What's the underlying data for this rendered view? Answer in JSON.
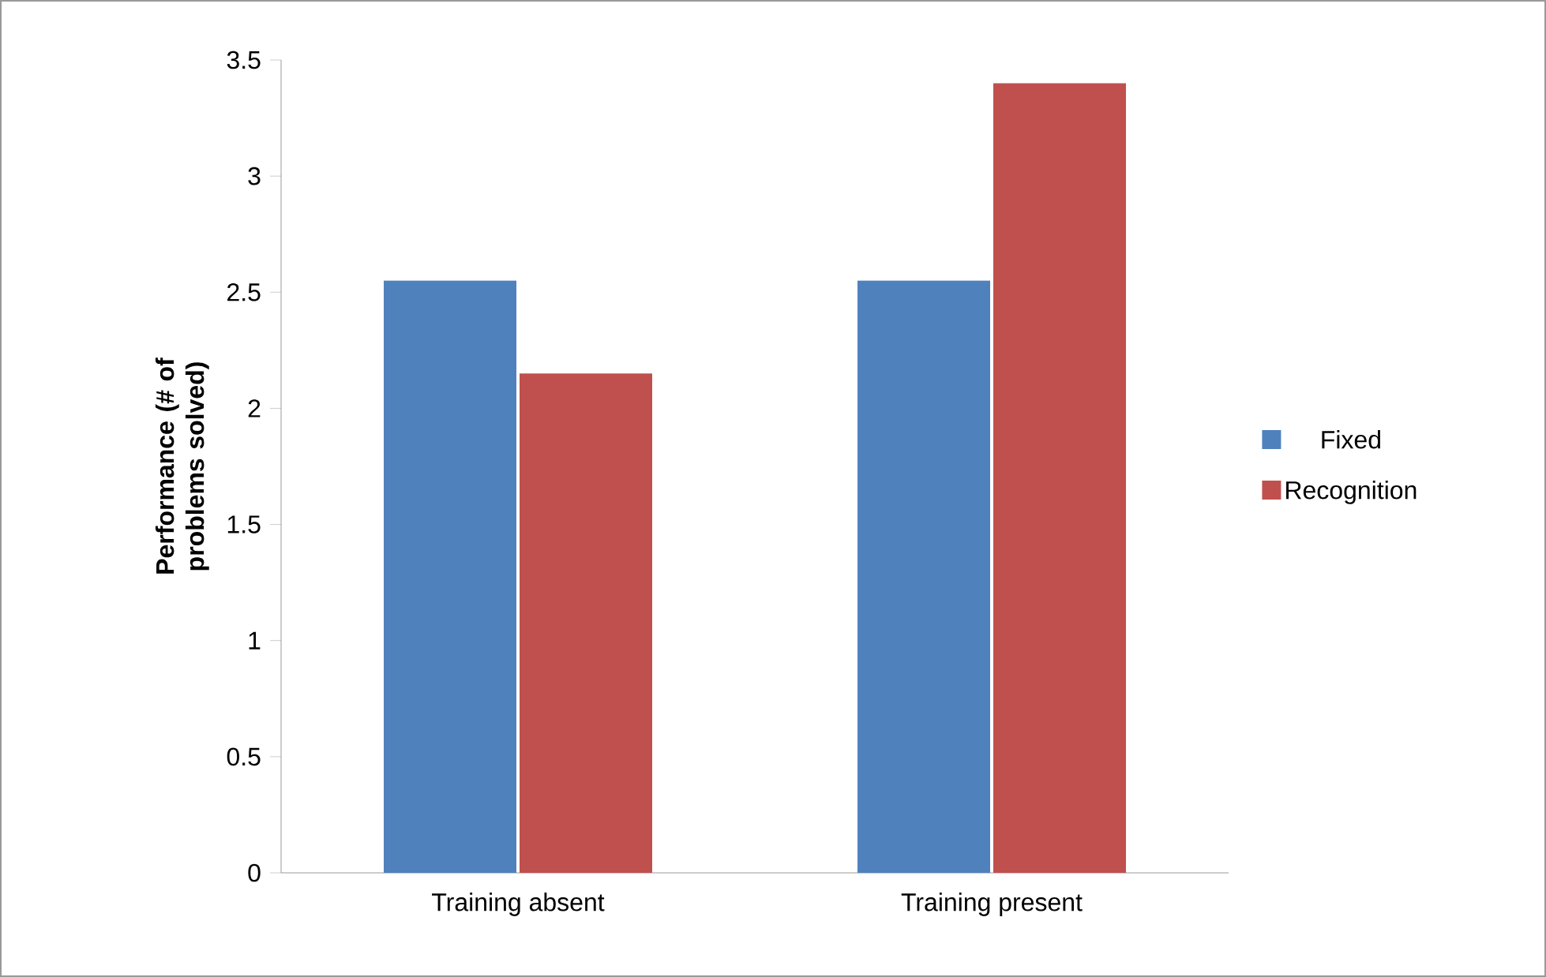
{
  "chart_data": {
    "type": "bar",
    "ylabel": "Performance (# of problems solved)",
    "categories": [
      "Training absent",
      "Training present"
    ],
    "series": [
      {
        "name": "Fixed",
        "color": "#4f81bd",
        "values": [
          2.55,
          2.55
        ]
      },
      {
        "name": "Recognition",
        "color": "#c0504d",
        "values": [
          2.15,
          3.4
        ]
      }
    ],
    "ylim": [
      0,
      3.5
    ],
    "yticks": [
      0,
      0.5,
      1,
      1.5,
      2,
      2.5,
      3,
      3.5
    ],
    "grid": false,
    "legend": "right"
  }
}
